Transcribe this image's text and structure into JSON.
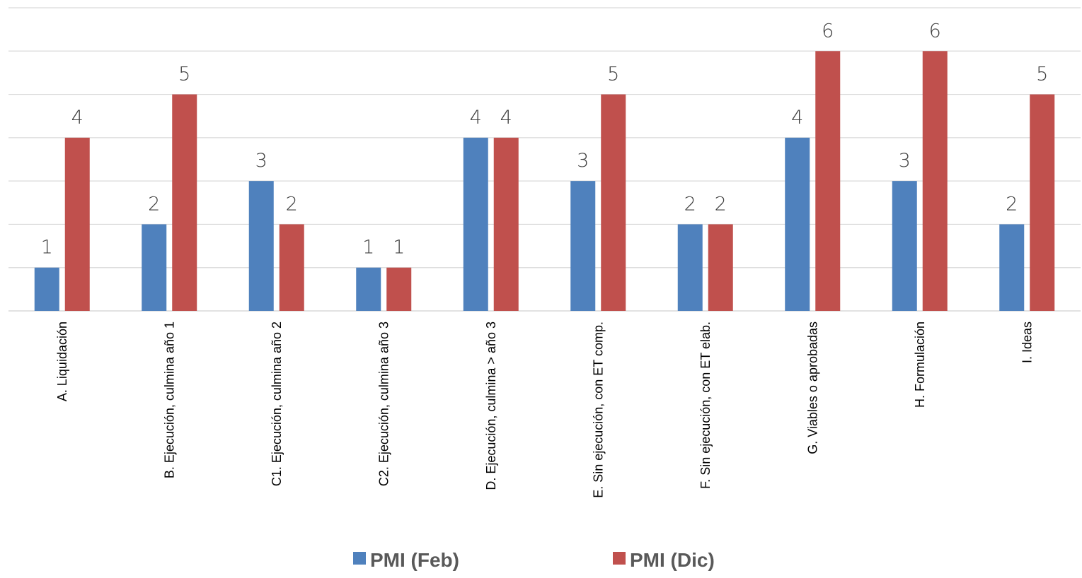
{
  "chart_data": {
    "type": "bar",
    "categories": [
      "A. Liquidación",
      "B. Ejecución, culmina año 1",
      "C1. Ejecución, culmina año 2",
      "C2. Ejecución, culmina año 3",
      "D. Ejecución, culmina > año 3",
      "E. Sin ejecución, con ET comp.",
      "F. Sin ejecución, con ET elab.",
      "G. Viables o aprobadas",
      "H. Formulación",
      "I. Ideas"
    ],
    "series": [
      {
        "name": "PMI (Feb)",
        "color": "#4f81bd",
        "values": [
          1,
          2,
          3,
          1,
          4,
          3,
          2,
          4,
          3,
          2
        ]
      },
      {
        "name": "PMI (Dic)",
        "color": "#c0504d",
        "values": [
          4,
          5,
          2,
          1,
          4,
          5,
          2,
          6,
          6,
          5
        ]
      }
    ],
    "ylim": [
      0,
      7
    ],
    "grid": true,
    "legend_position": "bottom",
    "data_labels": true
  }
}
